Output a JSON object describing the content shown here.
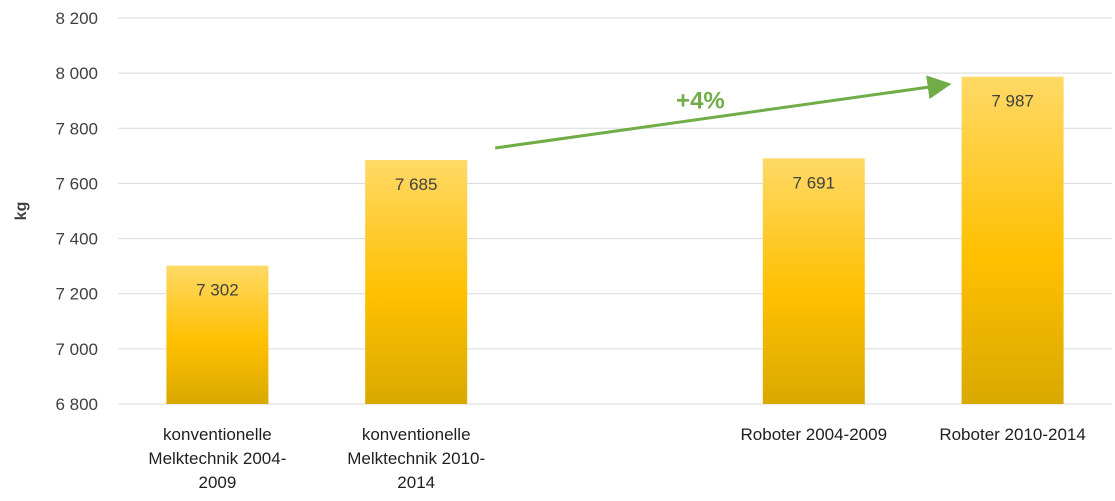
{
  "chart_data": {
    "type": "bar",
    "title": "",
    "xlabel": "",
    "ylabel": "kg",
    "ylim": [
      6800,
      8200
    ],
    "yticks": [
      6800,
      7000,
      7200,
      7400,
      7600,
      7800,
      8000,
      8200
    ],
    "ytick_labels": [
      "6 800",
      "7 000",
      "7 200",
      "7 400",
      "7 600",
      "7 800",
      "8 000",
      "8 200"
    ],
    "grid": true,
    "legend": "none",
    "slots": 5,
    "categories": [
      {
        "lines": [
          "konventionelle",
          "Melktechnik 2004-",
          "2009"
        ],
        "slot": 0,
        "value": 7302,
        "value_label": "7 302"
      },
      {
        "lines": [
          "konventionelle",
          "Melktechnik 2010-",
          "2014"
        ],
        "slot": 1,
        "value": 7685,
        "value_label": "7 685"
      },
      {
        "lines": [
          "Roboter 2004-2009"
        ],
        "slot": 3,
        "value": 7691,
        "value_label": "7 691"
      },
      {
        "lines": [
          "Roboter 2010-2014"
        ],
        "slot": 4,
        "value": 7987,
        "value_label": "7 987"
      }
    ],
    "colors": {
      "bar_top": "#ffd966",
      "bar_mid": "#ffc000",
      "bar_bottom": "#d9a900",
      "arrow": "#70ad47",
      "grid": "#d9d9d9"
    },
    "annotations": [
      {
        "text": "+4%",
        "from_category": 1,
        "to_category": 3
      }
    ]
  }
}
